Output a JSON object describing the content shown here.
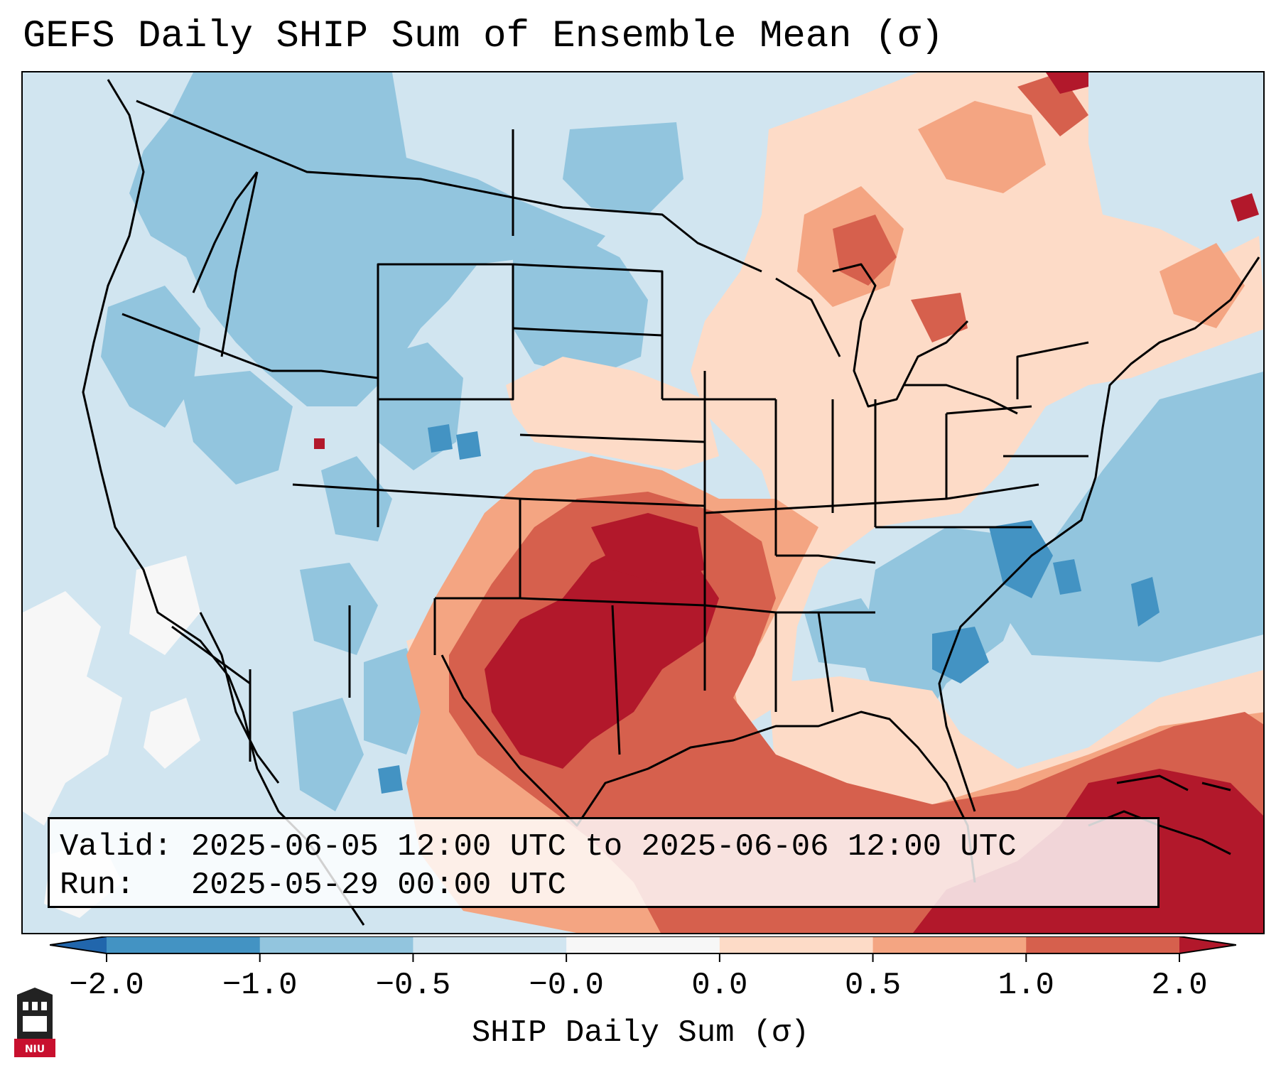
{
  "title": "GEFS Daily SHIP Sum of Ensemble Mean (σ)",
  "info": {
    "valid_label": "Valid:",
    "valid_text": "2025-06-05 12:00 UTC to 2025-06-06 12:00 UTC",
    "run_label": "Run:",
    "run_text": "2025-05-29 00:00 UTC"
  },
  "colorbar": {
    "label": "SHIP Daily Sum (σ)",
    "ticks": [
      "−2.0",
      "−1.0",
      "−0.5",
      "−0.0",
      "0.0",
      "0.5",
      "1.0",
      "2.0"
    ],
    "colors": [
      "#4393c3",
      "#92c5de",
      "#d1e5f0",
      "#f7f7f7",
      "#fddbc7",
      "#f4a582",
      "#d6604d",
      "#b2182b"
    ],
    "under_color": "#2166ac",
    "over_color": "#b2182b"
  },
  "map": {
    "ocean_background": "#d1e5f0",
    "region": "Contiguous United States, southern Canada, northern Mexico, Gulf of Mexico",
    "max_anomaly_region": "Oklahoma / north Texas",
    "min_anomaly_region": "Carolinas / Georgia"
  },
  "logo": {
    "text": "NIU",
    "color": "#c8102e"
  }
}
